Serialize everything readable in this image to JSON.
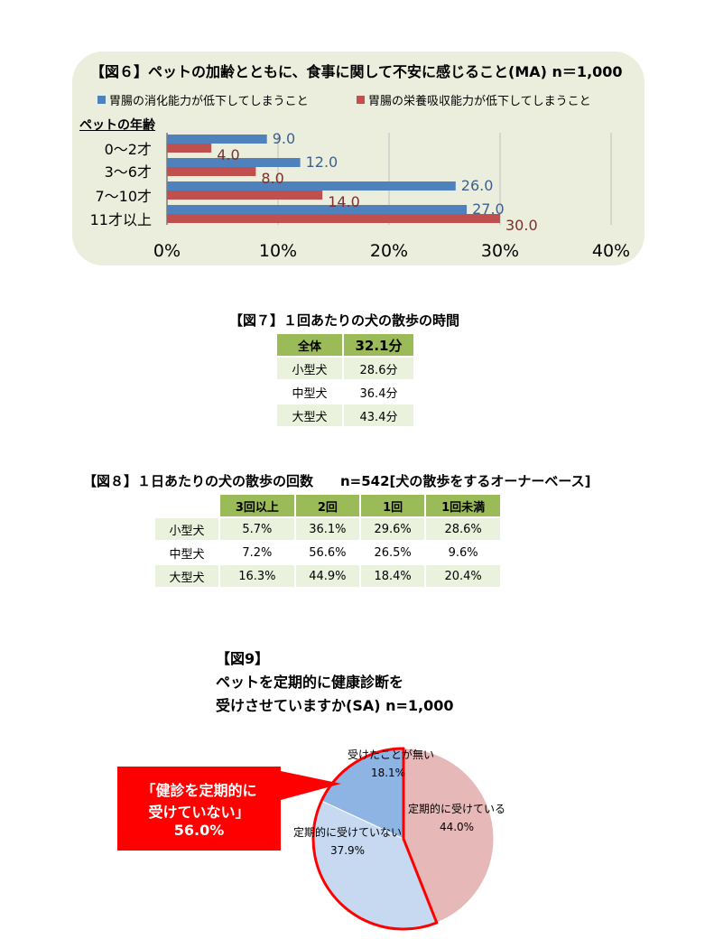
{
  "fig6": {
    "title": "【図６】ペットの加齢とともに、食事に関して不安に感じること(MA) n＝1,000",
    "ylabel": "ペットの年齢",
    "colors": {
      "series1": "#4f81bd",
      "series2": "#c0504d",
      "label1": "#3f5f8a",
      "label2": "#7b2f2e"
    }
  },
  "chart_data": [
    {
      "type": "bar",
      "orientation": "horizontal",
      "title": "【図６】ペットの加齢とともに、食事に関して不安に感じること(MA) n＝1,000",
      "ylabel": "ペットの年齢",
      "categories": [
        "0～2才",
        "3～6才",
        "7～10才",
        "11才以上"
      ],
      "series": [
        {
          "name": "胃腸の消化能力が低下してしまうこと",
          "values": [
            9.0,
            12.0,
            26.0,
            27.0
          ],
          "value_labels": [
            "9.0",
            "12.0",
            "26.0",
            "27.0"
          ]
        },
        {
          "name": "胃腸の栄養吸収能力が低下してしまうこと",
          "values": [
            4.0,
            8.0,
            14.0,
            30.0
          ],
          "value_labels": [
            "4.0",
            "8.0",
            "14.0",
            "30.0"
          ]
        }
      ],
      "xlim": [
        0,
        40
      ],
      "x_ticks": [
        "0%",
        "10%",
        "20%",
        "30%",
        "40%"
      ],
      "grid": true,
      "legend": "top"
    },
    {
      "type": "table",
      "title": "【図７】１回あたりの犬の散歩の時間",
      "header": [
        "全体",
        "32.1分"
      ],
      "rows": [
        [
          "小型犬",
          "28.6分"
        ],
        [
          "中型犬",
          "36.4分"
        ],
        [
          "大型犬",
          "43.4分"
        ]
      ]
    },
    {
      "type": "table",
      "title": "【図８】１日あたりの犬の散歩の回数　　n=542[犬の散歩をするオーナーベース]",
      "columns": [
        "",
        "3回以上",
        "2回",
        "1回",
        "1回未満"
      ],
      "rows": [
        [
          "小型犬",
          "5.7%",
          "36.1%",
          "29.6%",
          "28.6%"
        ],
        [
          "中型犬",
          "7.2%",
          "56.6%",
          "26.5%",
          "9.6%"
        ],
        [
          "大型犬",
          "16.3%",
          "44.9%",
          "18.4%",
          "20.4%"
        ]
      ]
    },
    {
      "type": "pie",
      "title": "【図9】ペットを定期的に健康診断を受けさせていますか(SA) n=1,000",
      "slices": [
        {
          "label": "定期的に受けている",
          "value": 44.0,
          "value_label": "44.0%",
          "color": "#e6b9b8"
        },
        {
          "label": "定期的に受けていない",
          "value": 37.9,
          "value_label": "37.9%",
          "color": "#c6d9f1"
        },
        {
          "label": "受けたことが無い",
          "value": 18.1,
          "value_label": "18.1%",
          "color": "#8eb4e3"
        }
      ],
      "callout": "「健診を定期的に受けていない」56.0%"
    }
  ],
  "fig7": {
    "title": "【図７】１回あたりの犬の散歩の時間",
    "header": {
      "label": "全体",
      "value": "32.1分"
    },
    "rows": [
      {
        "label": "小型犬",
        "value": "28.6分"
      },
      {
        "label": "中型犬",
        "value": "36.4分"
      },
      {
        "label": "大型犬",
        "value": "43.4分"
      }
    ]
  },
  "fig8": {
    "title": "【図８】１日あたりの犬の散歩の回数　　n=542[犬の散歩をするオーナーベース]",
    "columns": [
      "3回以上",
      "2回",
      "1回",
      "1回未満"
    ],
    "rows": [
      {
        "label": "小型犬",
        "cells": [
          "5.7%",
          "36.1%",
          "29.6%",
          "28.6%"
        ]
      },
      {
        "label": "中型犬",
        "cells": [
          "7.2%",
          "56.6%",
          "26.5%",
          "9.6%"
        ]
      },
      {
        "label": "大型犬",
        "cells": [
          "16.3%",
          "44.9%",
          "18.4%",
          "20.4%"
        ]
      }
    ]
  },
  "fig9": {
    "title_line1": "【図9】",
    "title_line2": "ペットを定期的に健康診断を",
    "title_line3": "受けさせていますか(SA)  n=1,000",
    "callout_line1": "「健診を定期的に",
    "callout_line2": "受けていない」",
    "callout_line3": "56.0%",
    "callout_color": "#ff0000"
  }
}
